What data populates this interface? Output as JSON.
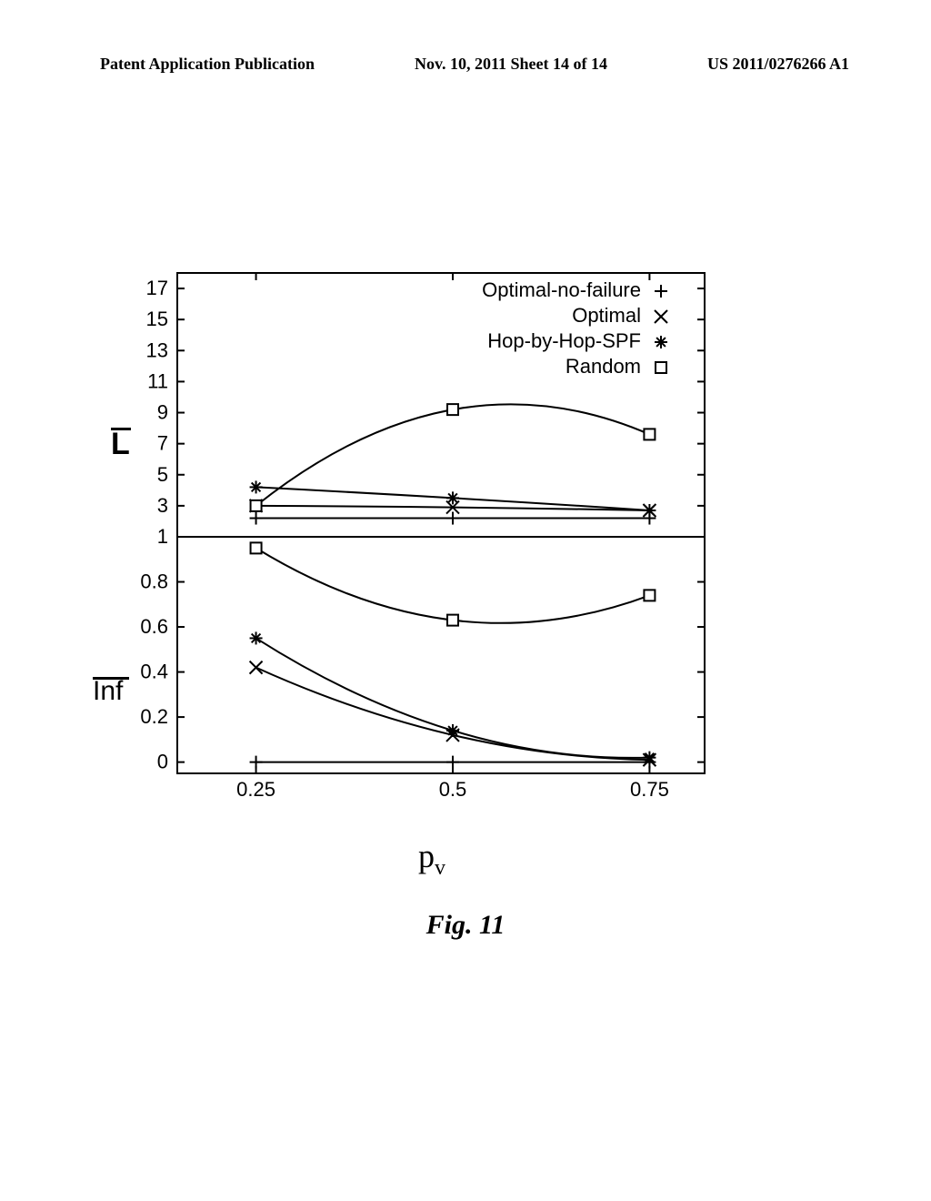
{
  "header": {
    "left": "Patent Application Publication",
    "center": "Nov. 10, 2011  Sheet 14 of 14",
    "right": "US 2011/0276266 A1"
  },
  "figure_caption": "Fig. 11",
  "chart": {
    "background_color": "#ffffff",
    "stroke_color": "#000000",
    "xlabel": "p",
    "xlabel_sub": "v",
    "x": {
      "ticks": [
        0.25,
        0.5,
        0.75
      ],
      "min": 0.15,
      "max": 0.82
    },
    "top_panel": {
      "ylabel": "L",
      "yticks": [
        1,
        3,
        5,
        7,
        9,
        11,
        13,
        15,
        17
      ],
      "ymin": 1,
      "ymax": 18,
      "series": {
        "optimal_no_failure": {
          "marker": "plus",
          "pts": [
            [
              0.25,
              2.2
            ],
            [
              0.5,
              2.2
            ],
            [
              0.75,
              2.2
            ]
          ]
        },
        "optimal": {
          "marker": "x",
          "pts": [
            [
              0.25,
              3.0
            ],
            [
              0.5,
              2.9
            ],
            [
              0.75,
              2.7
            ]
          ]
        },
        "hop_by_hop_spf": {
          "marker": "star",
          "pts": [
            [
              0.25,
              4.2
            ],
            [
              0.5,
              3.5
            ],
            [
              0.75,
              2.7
            ]
          ]
        },
        "random": {
          "marker": "square",
          "pts": [
            [
              0.25,
              3.0
            ],
            [
              0.5,
              9.2
            ],
            [
              0.75,
              7.6
            ]
          ]
        }
      }
    },
    "bottom_panel": {
      "ylabel": "Inf",
      "yticks": [
        0,
        0.2,
        0.4,
        0.6,
        0.8
      ],
      "ymin": -0.05,
      "ymax": 1.0,
      "series": {
        "optimal_no_failure": {
          "marker": "plus",
          "pts": [
            [
              0.25,
              0.0
            ],
            [
              0.5,
              0.0
            ],
            [
              0.75,
              0.0
            ]
          ]
        },
        "optimal": {
          "marker": "x",
          "pts": [
            [
              0.25,
              0.42
            ],
            [
              0.5,
              0.12
            ],
            [
              0.75,
              0.01
            ]
          ]
        },
        "hop_by_hop_spf": {
          "marker": "star",
          "pts": [
            [
              0.25,
              0.55
            ],
            [
              0.5,
              0.14
            ],
            [
              0.75,
              0.02
            ]
          ]
        },
        "random": {
          "marker": "square",
          "pts": [
            [
              0.25,
              0.95
            ],
            [
              0.5,
              0.63
            ],
            [
              0.75,
              0.74
            ]
          ]
        }
      }
    },
    "legend": [
      {
        "label": "Optimal-no-failure",
        "marker": "plus"
      },
      {
        "label": "Optimal",
        "marker": "x"
      },
      {
        "label": "Hop-by-Hop-SPF",
        "marker": "star"
      },
      {
        "label": "Random",
        "marker": "square"
      }
    ]
  }
}
